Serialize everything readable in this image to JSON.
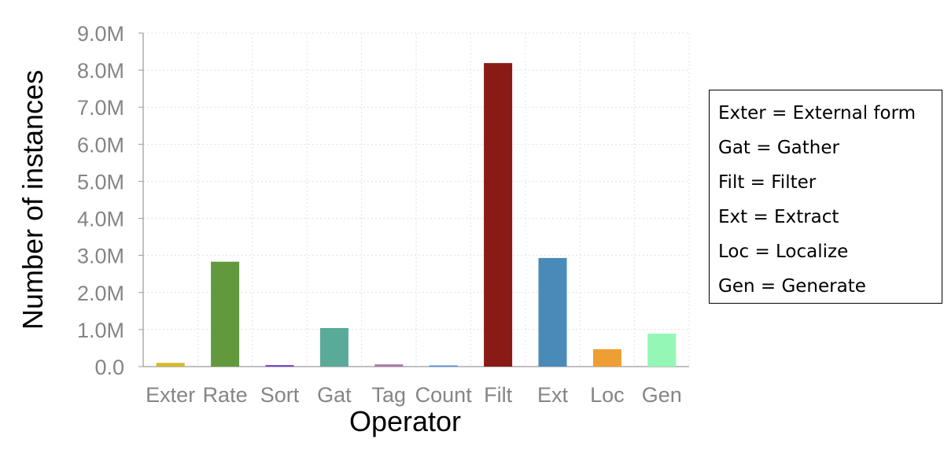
{
  "chart_data": {
    "type": "bar",
    "categories": [
      "Exter",
      "Rate",
      "Sort",
      "Gat",
      "Tag",
      "Count",
      "Filt",
      "Ext",
      "Loc",
      "Gen"
    ],
    "values": [
      100000,
      2830000,
      40000,
      1040000,
      60000,
      20000,
      8190000,
      2930000,
      470000,
      890000
    ],
    "colors": [
      "#d4b92a",
      "#62993d",
      "#6f3ccf",
      "#5aaa98",
      "#a87aa6",
      "#4a90e2",
      "#8a1a16",
      "#4a8ab8",
      "#ef9e33",
      "#95f7b5"
    ],
    "xlabel": "Operator",
    "ylabel": "Number of instances",
    "ylim": [
      0,
      9000000
    ],
    "yticks": [
      0,
      1000000,
      2000000,
      3000000,
      4000000,
      5000000,
      6000000,
      7000000,
      8000000,
      9000000
    ],
    "ytick_labels": [
      "0.0",
      "1.0M",
      "2.0M",
      "3.0M",
      "4.0M",
      "5.0M",
      "6.0M",
      "7.0M",
      "8.0M",
      "9.0M"
    ],
    "grid": true,
    "legend_placement": "right",
    "annotation_lines": [
      "Exter = External form",
      "Gat = Gather",
      "Filt = Filter",
      "Ext = Extract",
      "Loc = Localize",
      "Gen = Generate"
    ]
  }
}
